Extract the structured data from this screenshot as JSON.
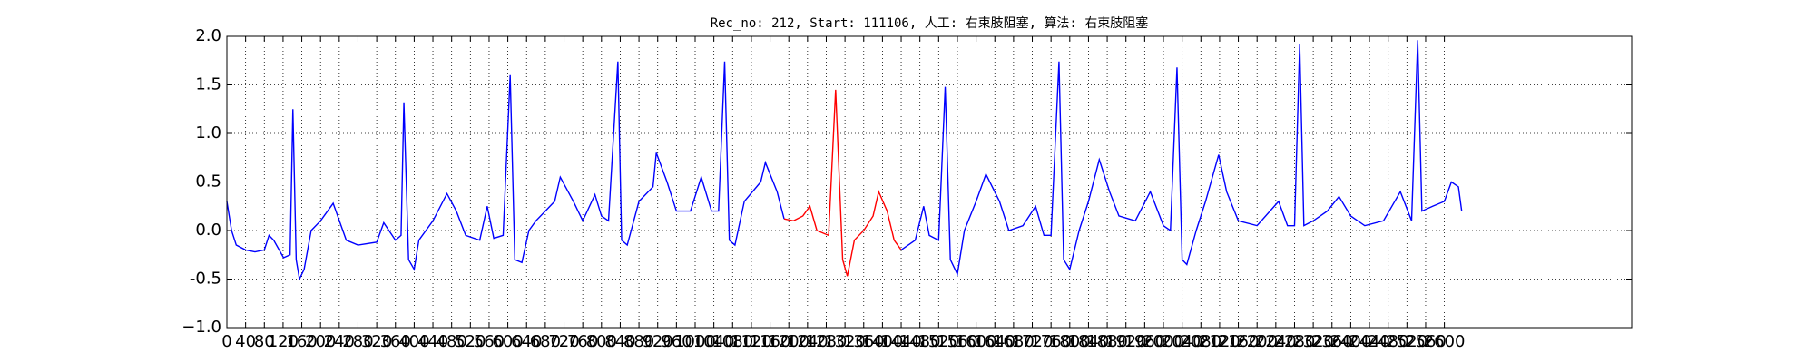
{
  "chart_data": {
    "type": "line",
    "title": "Rec_no: 212, Start: 111106, 人工: 右束肢阻塞, 算法: 右束肢阻塞",
    "xlim": [
      0,
      3000
    ],
    "ylim": [
      -1,
      2
    ],
    "xticks": [
      0,
      40,
      80,
      120,
      160,
      200,
      240,
      280,
      320,
      360,
      400,
      440,
      480,
      520,
      560,
      600,
      640,
      680,
      720,
      760,
      800,
      840,
      880,
      920,
      960,
      1000,
      1040,
      1080,
      1120,
      1160,
      1200,
      1240,
      1280,
      1320,
      1360,
      1400,
      1440,
      1480,
      1520,
      1560,
      1600,
      1640,
      1680,
      1720,
      1760,
      1800,
      1840,
      1880,
      1920,
      1960,
      2000,
      2040,
      2080,
      2120,
      2160,
      2200,
      2240,
      2280,
      2320,
      2360,
      2400,
      2440,
      2480,
      2520,
      2560,
      2600
    ],
    "yticks": [
      {
        "value": -1,
        "label": "−1.0"
      },
      -0.5,
      {
        "value": 0,
        "label": "0.0"
      },
      0.5,
      {
        "value": 1,
        "label": "1.0"
      },
      1.5,
      {
        "value": 2,
        "label": "2.0"
      }
    ],
    "grid": true,
    "series": [
      {
        "color": "#0000ff",
        "x": [
          0,
          10,
          20,
          40,
          60,
          80,
          90,
          100,
          121,
          135,
          141,
          148,
          155,
          165,
          180,
          200,
          227,
          255,
          280,
          320,
          335,
          360,
          372,
          378,
          388,
          400,
          410,
          440,
          470,
          490,
          510,
          540,
          556,
          570,
          590,
          605,
          615,
          630,
          645,
          660,
          680,
          700,
          712,
          740,
          760,
          786,
          800,
          815,
          835,
          843,
          855,
          880,
          910,
          917,
          940,
          960,
          990,
          1013,
          1035,
          1050,
          1063,
          1073,
          1085,
          1105,
          1140,
          1150,
          1175,
          1190
        ],
        "values": [
          0.3,
          0.0,
          -0.15,
          -0.2,
          -0.22,
          -0.2,
          -0.05,
          -0.1,
          -0.28,
          -0.25,
          1.25,
          -0.3,
          -0.5,
          -0.4,
          0,
          0.1,
          0.28,
          -0.1,
          -0.15,
          -0.12,
          0.08,
          -0.1,
          -0.05,
          1.32,
          -0.3,
          -0.4,
          -0.1,
          0.1,
          0.38,
          0.2,
          -0.05,
          -0.1,
          0.25,
          -0.08,
          -0.05,
          1.6,
          -0.3,
          -0.33,
          0,
          0.1,
          0.2,
          0.3,
          0.55,
          0.3,
          0.1,
          0.37,
          0.15,
          0.1,
          1.74,
          -0.1,
          -0.15,
          0.3,
          0.45,
          0.8,
          0.5,
          0.2,
          0.2,
          0.55,
          0.2,
          0.2,
          1.74,
          -0.1,
          -0.15,
          0.3,
          0.5,
          0.7,
          0.4,
          0.12
        ]
      },
      {
        "color": "#ff0000",
        "x": [
          1190,
          1210,
          1230,
          1245,
          1260,
          1285,
          1300,
          1315,
          1325,
          1340,
          1360,
          1380,
          1392,
          1410,
          1425,
          1440
        ],
        "values": [
          0.12,
          0.1,
          0.15,
          0.25,
          0.0,
          -0.05,
          1.45,
          -0.3,
          -0.47,
          -0.1,
          0.0,
          0.15,
          0.4,
          0.2,
          -0.1,
          -0.2
        ]
      },
      {
        "color": "#0000ff",
        "x": [
          1440,
          1470,
          1488,
          1500,
          1520,
          1534,
          1545,
          1560,
          1575,
          1600,
          1621,
          1650,
          1670,
          1700,
          1727,
          1745,
          1760,
          1777,
          1787,
          1800,
          1820,
          1840,
          1863,
          1885,
          1905,
          1940,
          1972,
          2000,
          2015,
          2029,
          2040,
          2050,
          2070,
          2090,
          2118,
          2135,
          2160,
          2200,
          2246,
          2265,
          2280,
          2291,
          2300,
          2320,
          2350,
          2375,
          2400,
          2430,
          2470,
          2506,
          2530,
          2543,
          2552,
          2575,
          2600,
          2615,
          2630,
          2637
        ],
        "values": [
          -0.2,
          -0.1,
          0.25,
          -0.05,
          -0.1,
          1.48,
          -0.3,
          -0.45,
          0,
          0.3,
          0.58,
          0.3,
          0,
          0.05,
          0.25,
          -0.05,
          -0.05,
          1.74,
          -0.3,
          -0.4,
          0,
          0.3,
          0.73,
          0.4,
          0.15,
          0.1,
          0.4,
          0.05,
          0.0,
          1.68,
          -0.3,
          -0.35,
          0,
          0.3,
          0.78,
          0.4,
          0.1,
          0.05,
          0.3,
          0.05,
          0.05,
          1.92,
          0.05,
          0.1,
          0.2,
          0.35,
          0.15,
          0.05,
          0.1,
          0.4,
          0.1,
          1.96,
          0.2,
          0.25,
          0.3,
          0.5,
          0.45,
          0.2
        ]
      }
    ]
  }
}
